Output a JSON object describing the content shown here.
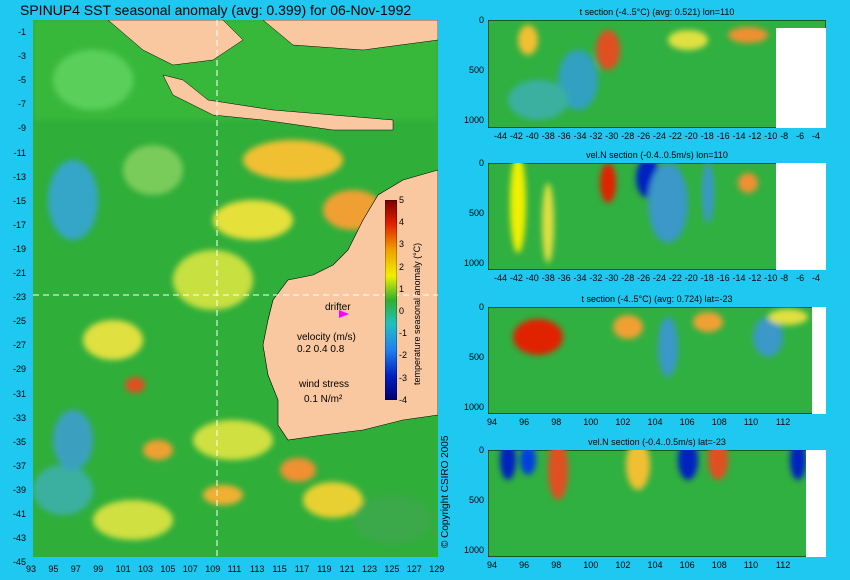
{
  "title": "SPINUP4 SST seasonal anomaly (avg: 0.399) for 06-Nov-1992",
  "map": {
    "lat_ticks": [
      "-1",
      "-3",
      "-5",
      "-7",
      "-9",
      "-11",
      "-13",
      "-15",
      "-17",
      "-19",
      "-21",
      "-23",
      "-25",
      "-27",
      "-29",
      "-31",
      "-33",
      "-35",
      "-37",
      "-39",
      "-41",
      "-43",
      "-45"
    ],
    "lon_ticks": [
      "93",
      "95",
      "97",
      "99",
      "101",
      "103",
      "105",
      "107",
      "109",
      "111",
      "113",
      "115",
      "117",
      "119",
      "121",
      "123",
      "125",
      "127",
      "129"
    ],
    "drifter_label": "drifter",
    "velocity_label": "velocity (m/s)",
    "velocity_values": "0.2 0.4 0.8",
    "wind_label": "wind stress",
    "wind_value": "0.1 N/m²",
    "colorbar_label": "temperature seasonal anomaly (°C)",
    "colorbar_ticks": [
      "5",
      "4",
      "3",
      "2",
      "1",
      "0",
      "-1",
      "-2",
      "-3",
      "-4"
    ],
    "colors": {
      "land": "#f9c8a0",
      "ocean_base": "#2fae3a",
      "drifter": "#ff00ff"
    }
  },
  "copyright": "© Copyright CSIRO 2005",
  "sections": [
    {
      "title": "t section (-4..5°C) (avg: 0.521) lon=110",
      "x_ticks": [
        "-44",
        "-42",
        "-40",
        "-38",
        "-36",
        "-34",
        "-32",
        "-30",
        "-28",
        "-26",
        "-24",
        "-22",
        "-20",
        "-18",
        "-16",
        "-14",
        "-12",
        "-10",
        "-8",
        "-6",
        "-4"
      ],
      "y_ticks": [
        "0",
        "500",
        "1000"
      ]
    },
    {
      "title": "vel.N section (-0.4..0.5m/s) lon=110",
      "x_ticks": [
        "-44",
        "-42",
        "-40",
        "-38",
        "-36",
        "-34",
        "-32",
        "-30",
        "-28",
        "-26",
        "-24",
        "-22",
        "-20",
        "-18",
        "-16",
        "-14",
        "-12",
        "-10",
        "-8",
        "-6",
        "-4"
      ],
      "y_ticks": [
        "0",
        "500",
        "1000"
      ]
    },
    {
      "title": "t section (-4..5°C) (avg: 0.724) lat=-23",
      "x_ticks": [
        "94",
        "96",
        "98",
        "100",
        "102",
        "104",
        "106",
        "108",
        "110",
        "112"
      ],
      "y_ticks": [
        "0",
        "500",
        "1000"
      ]
    },
    {
      "title": "vel.N section (-0.4..0.5m/s) lat=-23",
      "x_ticks": [
        "94",
        "96",
        "98",
        "100",
        "102",
        "104",
        "106",
        "108",
        "110",
        "112"
      ],
      "y_ticks": [
        "0",
        "500",
        "1000"
      ]
    }
  ]
}
